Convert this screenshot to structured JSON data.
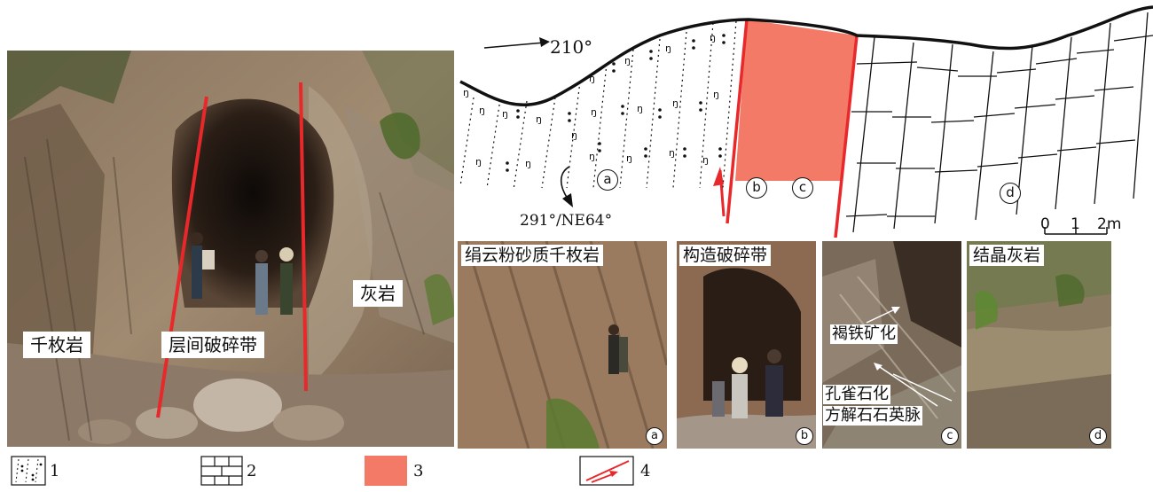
{
  "main_photo": {
    "labels": {
      "phyllite": "千枚岩",
      "interlayer_zone": "层间破碎带",
      "limestone": "灰岩"
    },
    "fault_color": "#e8282a"
  },
  "section": {
    "direction": "210°",
    "attitude": "291°/NE64°",
    "markers": [
      "a",
      "b",
      "c",
      "d"
    ],
    "scale": {
      "ticks": [
        "0",
        "1",
        "2m"
      ]
    },
    "fracture_zone_color": "#f47a68"
  },
  "insets": [
    {
      "caption": "绢云粉砂质千枚岩",
      "marker": "a"
    },
    {
      "caption": "构造破碎带",
      "marker": "b"
    },
    {
      "caption": "",
      "marker": "c",
      "annotations": [
        "褐铁矿化",
        "孔雀石化",
        "方解石石英脉"
      ]
    },
    {
      "caption": "结晶灰岩",
      "marker": "d"
    }
  ],
  "legend": [
    {
      "number": "1",
      "symbol": "phyllite-pattern"
    },
    {
      "number": "2",
      "symbol": "limestone-brick-pattern"
    },
    {
      "number": "3",
      "symbol": "fracture-zone-fill",
      "color": "#f47a68"
    },
    {
      "number": "4",
      "symbol": "fault-arrow",
      "color": "#e8282a"
    }
  ]
}
